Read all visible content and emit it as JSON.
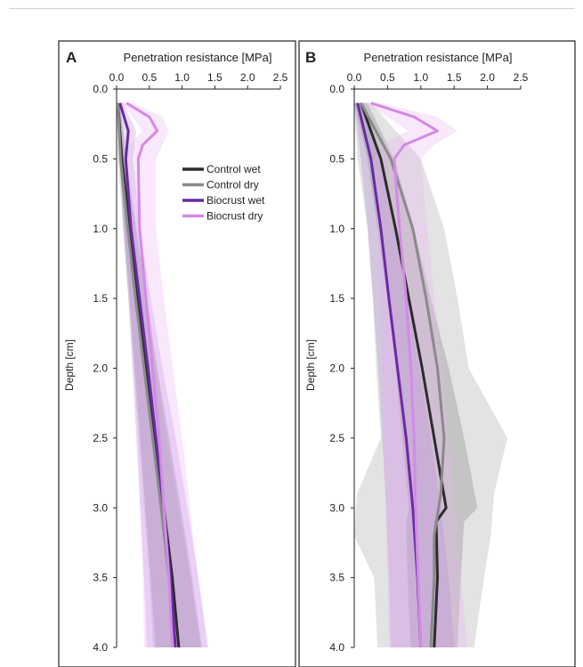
{
  "figure": {
    "panels": [
      "A",
      "B"
    ]
  },
  "chart_data": [
    {
      "type": "line",
      "panel_label": "A",
      "xlabel": "Penetration resistance [MPa]",
      "ylabel": "Depth [cm]",
      "xlim": [
        0,
        2.5
      ],
      "ylim": [
        0,
        4.0
      ],
      "x_axis_position": "top",
      "y_axis_inverted": true,
      "xticks": [
        "0.0",
        "0.5",
        "1.0",
        "1.5",
        "2.0",
        "2.5"
      ],
      "yticks": [
        "0.0",
        "0.5",
        "1.0",
        "1.5",
        "2.0",
        "2.5",
        "3.0",
        "3.5",
        "4.0"
      ],
      "grid": false,
      "legend": {
        "placement": "top-right",
        "entries": [
          "Control wet",
          "Control dry",
          "Biocrust wet",
          "Biocrust dry"
        ]
      },
      "series": [
        {
          "name": "Control wet",
          "color": "#2b2b2b",
          "depth": [
            0.1,
            0.5,
            1.0,
            1.5,
            2.0,
            2.5,
            3.0,
            3.5,
            4.0
          ],
          "mean": [
            0.02,
            0.08,
            0.2,
            0.32,
            0.45,
            0.58,
            0.72,
            0.85,
            0.95
          ],
          "lower": [
            0.0,
            0.04,
            0.12,
            0.2,
            0.28,
            0.36,
            0.44,
            0.52,
            0.6
          ],
          "upper": [
            0.05,
            0.15,
            0.3,
            0.46,
            0.62,
            0.8,
            0.98,
            1.15,
            1.3
          ]
        },
        {
          "name": "Control dry",
          "color": "#8a8a8a",
          "depth": [
            0.1,
            0.5,
            1.0,
            1.5,
            2.0,
            2.5,
            3.0,
            3.5,
            4.0
          ],
          "mean": [
            0.02,
            0.06,
            0.17,
            0.29,
            0.42,
            0.55,
            0.68,
            0.8,
            0.9
          ],
          "lower": [
            0.0,
            0.02,
            0.1,
            0.18,
            0.26,
            0.34,
            0.42,
            0.5,
            0.56
          ],
          "upper": [
            0.04,
            0.12,
            0.28,
            0.44,
            0.6,
            0.76,
            0.94,
            1.12,
            1.28
          ]
        },
        {
          "name": "Biocrust wet",
          "color": "#6a2aa3",
          "depth": [
            0.1,
            0.3,
            0.5,
            1.0,
            1.5,
            2.0,
            2.5,
            3.0,
            3.5,
            4.0
          ],
          "mean": [
            0.05,
            0.18,
            0.14,
            0.22,
            0.35,
            0.48,
            0.6,
            0.72,
            0.82,
            0.9
          ],
          "lower": [
            0.0,
            0.05,
            0.05,
            0.1,
            0.18,
            0.24,
            0.3,
            0.36,
            0.42,
            0.46
          ],
          "upper": [
            0.1,
            0.3,
            0.25,
            0.36,
            0.52,
            0.7,
            0.9,
            1.08,
            1.25,
            1.4
          ]
        },
        {
          "name": "Biocrust dry",
          "color": "#d38ae6",
          "depth": [
            0.1,
            0.2,
            0.3,
            0.4,
            0.5,
            1.0,
            1.5,
            2.0,
            2.5,
            3.0,
            3.5,
            4.0
          ],
          "mean": [
            0.15,
            0.5,
            0.62,
            0.4,
            0.33,
            0.35,
            0.45,
            0.55,
            0.65,
            0.72,
            0.8,
            0.85
          ],
          "lower": [
            0.05,
            0.25,
            0.4,
            0.2,
            0.12,
            0.14,
            0.2,
            0.26,
            0.32,
            0.36,
            0.4,
            0.42
          ],
          "upper": [
            0.25,
            0.7,
            0.8,
            0.7,
            0.6,
            0.6,
            0.72,
            0.86,
            1.0,
            1.12,
            1.24,
            1.38
          ]
        }
      ]
    },
    {
      "type": "line",
      "panel_label": "B",
      "xlabel": "Penetration resistance [MPa]",
      "ylabel": "Depth [cm]",
      "xlim": [
        0,
        2.5
      ],
      "ylim": [
        0,
        4.0
      ],
      "x_axis_position": "top",
      "y_axis_inverted": true,
      "xticks": [
        "0.0",
        "0.5",
        "1.0",
        "1.5",
        "2.0",
        "2.5"
      ],
      "yticks": [
        "0.0",
        "0.5",
        "1.0",
        "1.5",
        "2.0",
        "2.5",
        "3.0",
        "3.5",
        "4.0"
      ],
      "grid": false,
      "series": [
        {
          "name": "Control wet",
          "color": "#2b2b2b",
          "depth": [
            0.1,
            0.5,
            1.0,
            1.5,
            2.0,
            2.5,
            3.0,
            3.1,
            3.5,
            4.0
          ],
          "mean": [
            0.1,
            0.4,
            0.62,
            0.82,
            1.02,
            1.2,
            1.38,
            1.23,
            1.25,
            1.2
          ],
          "lower": [
            0.0,
            0.2,
            0.35,
            0.5,
            0.62,
            0.72,
            0.82,
            0.78,
            0.8,
            0.85
          ],
          "upper": [
            0.2,
            0.6,
            0.9,
            1.15,
            1.42,
            1.65,
            1.85,
            1.65,
            1.6,
            1.55
          ]
        },
        {
          "name": "Control dry",
          "color": "#8a8a8a",
          "depth": [
            0.1,
            0.5,
            1.0,
            1.5,
            2.0,
            2.5,
            2.9,
            3.2,
            3.5,
            4.0
          ],
          "mean": [
            0.1,
            0.55,
            0.88,
            1.08,
            1.25,
            1.35,
            1.3,
            1.2,
            1.2,
            1.15
          ],
          "lower": [
            0.0,
            0.05,
            0.2,
            0.28,
            0.33,
            0.4,
            0.04,
            0.0,
            0.3,
            0.35
          ],
          "upper": [
            0.25,
            1.0,
            1.35,
            1.55,
            1.72,
            2.3,
            2.1,
            2.05,
            1.95,
            1.8
          ]
        },
        {
          "name": "Biocrust wet",
          "color": "#6a2aa3",
          "depth": [
            0.1,
            0.5,
            1.0,
            1.5,
            2.0,
            2.5,
            3.0,
            3.5,
            4.0
          ],
          "mean": [
            0.05,
            0.25,
            0.4,
            0.52,
            0.65,
            0.78,
            0.88,
            0.95,
            1.0
          ],
          "lower": [
            0.0,
            0.1,
            0.2,
            0.28,
            0.36,
            0.42,
            0.48,
            0.52,
            0.55
          ],
          "upper": [
            0.15,
            0.4,
            0.6,
            0.8,
            0.98,
            1.15,
            1.3,
            1.42,
            1.5
          ]
        },
        {
          "name": "Biocrust dry",
          "color": "#d38ae6",
          "depth": [
            0.1,
            0.2,
            0.3,
            0.4,
            0.5,
            1.0,
            1.5,
            2.0,
            2.5,
            3.0,
            3.5,
            4.0
          ],
          "mean": [
            0.25,
            0.9,
            1.25,
            0.75,
            0.6,
            0.68,
            0.78,
            0.85,
            0.9,
            0.92,
            0.96,
            1.0
          ],
          "lower": [
            0.1,
            0.5,
            0.8,
            0.4,
            0.3,
            0.35,
            0.4,
            0.42,
            0.45,
            0.47,
            0.5,
            0.52
          ],
          "upper": [
            0.4,
            1.25,
            1.55,
            1.2,
            1.0,
            1.1,
            1.2,
            1.32,
            1.42,
            1.5,
            1.6,
            1.7
          ]
        }
      ]
    }
  ]
}
